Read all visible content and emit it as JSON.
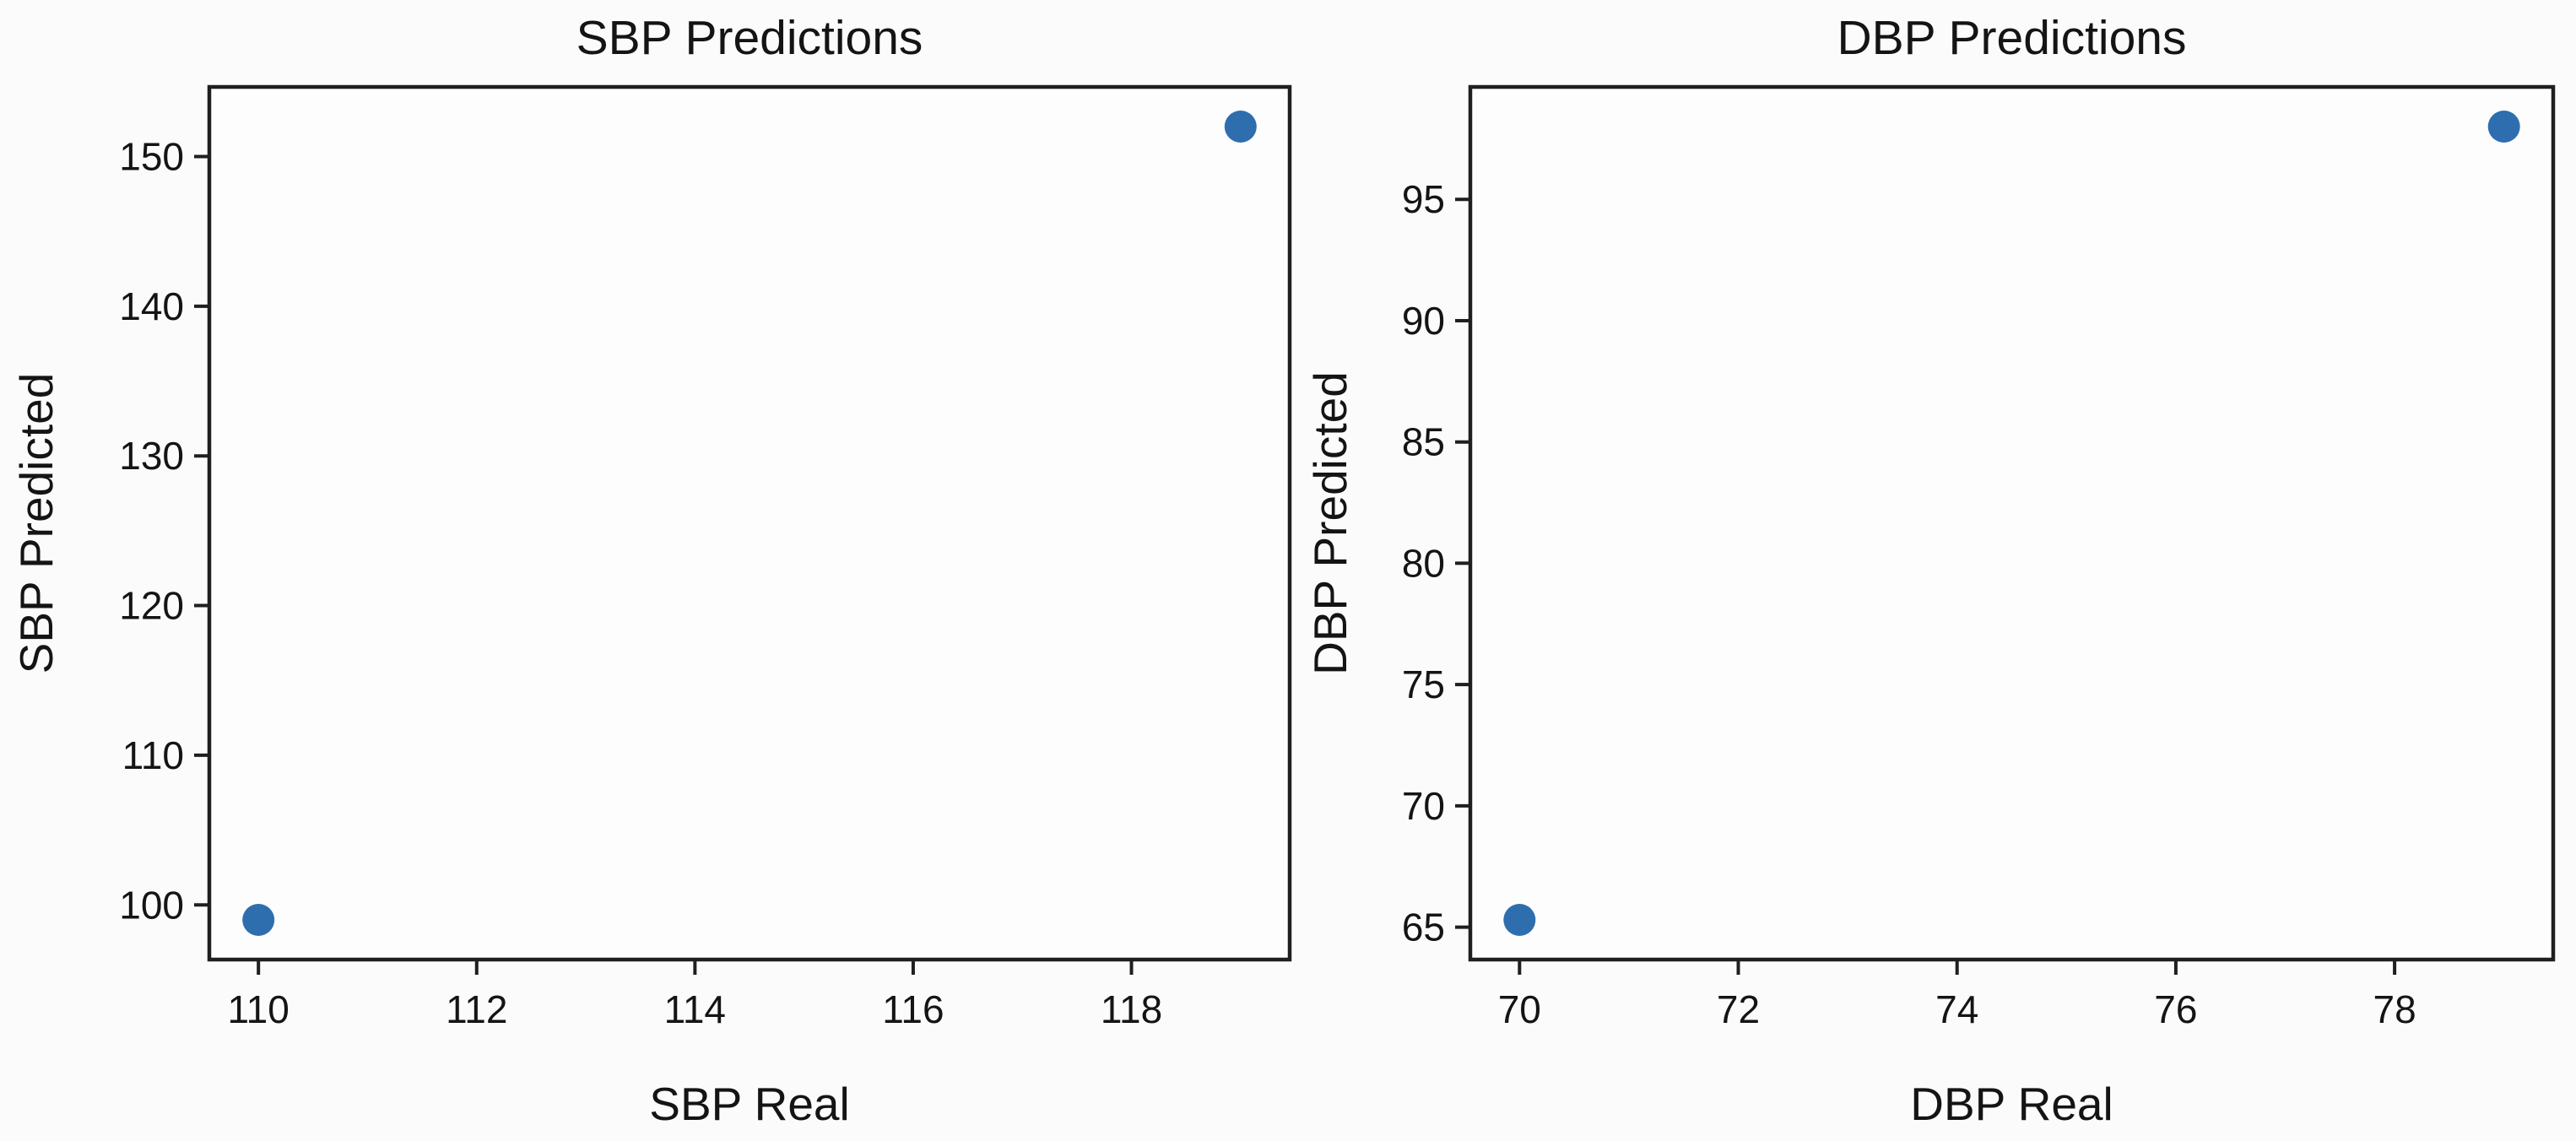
{
  "figure": {
    "background": "#fbfbfb",
    "axes_face_color": "#fdfdfd",
    "spine_color": "#1f1f1f",
    "text_color": "#141414"
  },
  "chart_data": [
    {
      "type": "scatter",
      "title": "SBP Predictions",
      "xlabel": "SBP Real",
      "ylabel": "SBP Predicted",
      "points": [
        [
          110,
          99
        ],
        [
          119,
          152
        ]
      ],
      "xlim": [
        109.55,
        119.45
      ],
      "ylim": [
        96.35,
        154.65
      ],
      "xticks": [
        110,
        112,
        114,
        116,
        118
      ],
      "yticks": [
        100,
        110,
        120,
        130,
        140,
        150
      ],
      "marker_color": "#2e6eae",
      "legend": null,
      "grid": false
    },
    {
      "type": "scatter",
      "title": "DBP Predictions",
      "xlabel": "DBP Real",
      "ylabel": "DBP Predicted",
      "points": [
        [
          70,
          65.3
        ],
        [
          79,
          98
        ]
      ],
      "xlim": [
        69.55,
        79.45
      ],
      "ylim": [
        63.665,
        99.635
      ],
      "xticks": [
        70,
        72,
        74,
        76,
        78
      ],
      "yticks": [
        65,
        70,
        75,
        80,
        85,
        90,
        95
      ],
      "marker_color": "#2e6eae",
      "legend": null,
      "grid": false
    }
  ]
}
